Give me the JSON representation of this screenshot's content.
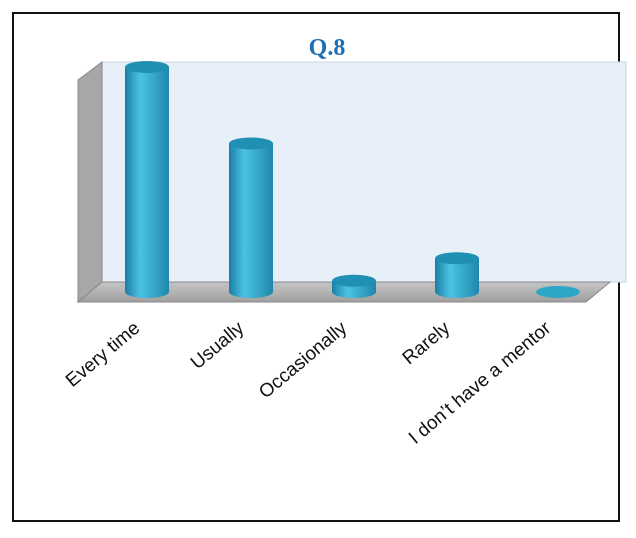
{
  "chart_data": {
    "type": "bar",
    "title": "Q.8",
    "xlabel": "",
    "ylabel": "",
    "categories": [
      "Every time",
      "Usually",
      "Occasionally",
      "Rarely",
      "I don’t have a mentor"
    ],
    "values": [
      100,
      66,
      5,
      15,
      0
    ],
    "ylim": [
      0,
      100
    ],
    "grid": false,
    "legend": "none",
    "colors": {
      "bar": "#2ea6c8",
      "title": "#1b6fb5",
      "back_wall": "#e7f0f8",
      "side_wall": "#a7a7a7",
      "floor": "#b3b3b3"
    }
  }
}
